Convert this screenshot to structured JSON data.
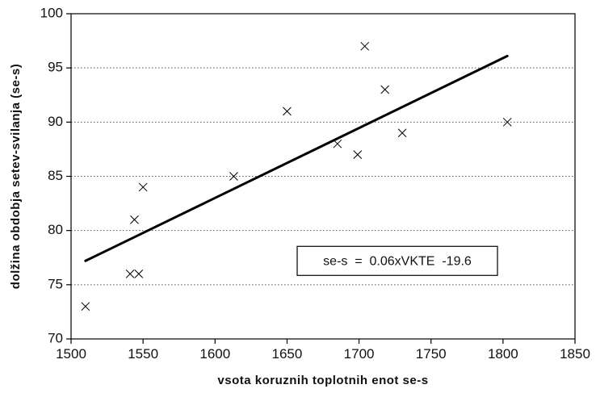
{
  "chart_data": {
    "type": "scatter",
    "title": "",
    "xlabel": "vsota koruznih toplotnih enot se-s",
    "ylabel": "dolžina obdobja setev-svilanja (se-s)",
    "xlim": [
      1500,
      1850
    ],
    "ylim": [
      70,
      100
    ],
    "xticks": [
      1500,
      1550,
      1600,
      1650,
      1700,
      1750,
      1800,
      1850
    ],
    "yticks": [
      70,
      75,
      80,
      85,
      90,
      95,
      100
    ],
    "grid": "horizontal dotted",
    "marker": "x",
    "points": [
      {
        "x": 1510,
        "y": 73
      },
      {
        "x": 1541,
        "y": 76
      },
      {
        "x": 1547,
        "y": 76
      },
      {
        "x": 1544,
        "y": 81
      },
      {
        "x": 1550,
        "y": 84
      },
      {
        "x": 1613,
        "y": 85
      },
      {
        "x": 1650,
        "y": 91
      },
      {
        "x": 1685,
        "y": 88
      },
      {
        "x": 1699,
        "y": 87
      },
      {
        "x": 1704,
        "y": 97
      },
      {
        "x": 1718,
        "y": 93
      },
      {
        "x": 1730,
        "y": 89
      },
      {
        "x": 1803,
        "y": 90
      }
    ],
    "trendline": {
      "x1": 1510,
      "y1": 77.2,
      "x2": 1803,
      "y2": 96.1
    },
    "equation": "se-s  =  0.06xVKTE  -19.6",
    "equation_y": 77.2
  }
}
